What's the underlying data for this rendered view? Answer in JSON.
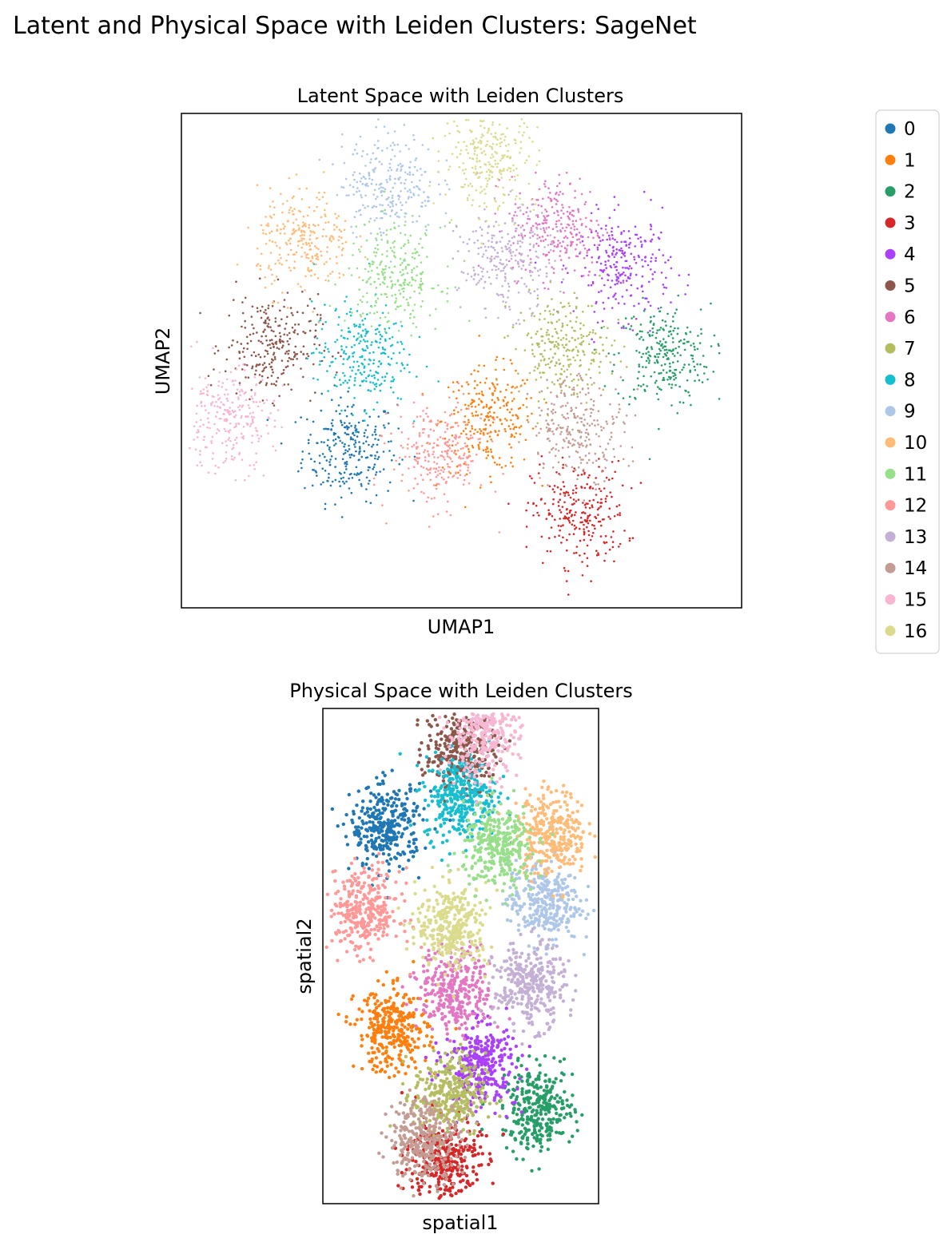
{
  "figure": {
    "title": "Latent and Physical Space with Leiden Clusters: SageNet"
  },
  "legend": {
    "placement": "right",
    "entries": [
      {
        "label": "0",
        "color": "#1f77b4"
      },
      {
        "label": "1",
        "color": "#ff7f0e"
      },
      {
        "label": "2",
        "color": "#279e68"
      },
      {
        "label": "3",
        "color": "#d62728"
      },
      {
        "label": "4",
        "color": "#aa40fc"
      },
      {
        "label": "5",
        "color": "#8c564b"
      },
      {
        "label": "6",
        "color": "#e377c2"
      },
      {
        "label": "7",
        "color": "#b5bd61"
      },
      {
        "label": "8",
        "color": "#17becf"
      },
      {
        "label": "9",
        "color": "#aec7e8"
      },
      {
        "label": "10",
        "color": "#ffbb78"
      },
      {
        "label": "11",
        "color": "#98df8a"
      },
      {
        "label": "12",
        "color": "#ff9896"
      },
      {
        "label": "13",
        "color": "#c5b0d5"
      },
      {
        "label": "14",
        "color": "#c49c94"
      },
      {
        "label": "15",
        "color": "#f7b6d2"
      },
      {
        "label": "16",
        "color": "#dbdb8d"
      }
    ]
  },
  "chart_data": [
    {
      "type": "scatter",
      "title": "Latent Space with Leiden Clusters",
      "xlabel": "UMAP1",
      "ylabel": "UMAP2",
      "xlim": [
        0,
        100
      ],
      "ylim": [
        0,
        100
      ],
      "grid": false,
      "ticks": false,
      "clusters": [
        {
          "label": "0",
          "x": 30,
          "y": 32
        },
        {
          "label": "1",
          "x": 55,
          "y": 38
        },
        {
          "label": "2",
          "x": 86,
          "y": 51
        },
        {
          "label": "3",
          "x": 71,
          "y": 19
        },
        {
          "label": "4",
          "x": 79,
          "y": 69
        },
        {
          "label": "5",
          "x": 16,
          "y": 53
        },
        {
          "label": "6",
          "x": 67,
          "y": 77
        },
        {
          "label": "7",
          "x": 68,
          "y": 53
        },
        {
          "label": "8",
          "x": 32,
          "y": 51
        },
        {
          "label": "9",
          "x": 37,
          "y": 86
        },
        {
          "label": "10",
          "x": 22,
          "y": 74
        },
        {
          "label": "11",
          "x": 38,
          "y": 67
        },
        {
          "label": "12",
          "x": 46,
          "y": 31
        },
        {
          "label": "13",
          "x": 58,
          "y": 70
        },
        {
          "label": "14",
          "x": 71,
          "y": 37
        },
        {
          "label": "15",
          "x": 8,
          "y": 38
        },
        {
          "label": "16",
          "x": 55,
          "y": 91
        }
      ]
    },
    {
      "type": "scatter",
      "title": "Physical Space with Leiden Clusters",
      "xlabel": "spatial1",
      "ylabel": "spatial2",
      "xlim": [
        0,
        100
      ],
      "ylim": [
        0,
        100
      ],
      "grid": false,
      "ticks": false,
      "clusters": [
        {
          "label": "0",
          "x": 23,
          "y": 76
        },
        {
          "label": "1",
          "x": 25,
          "y": 35
        },
        {
          "label": "2",
          "x": 78,
          "y": 19
        },
        {
          "label": "3",
          "x": 44,
          "y": 9
        },
        {
          "label": "4",
          "x": 57,
          "y": 28
        },
        {
          "label": "5",
          "x": 50,
          "y": 92
        },
        {
          "label": "6",
          "x": 48,
          "y": 43
        },
        {
          "label": "7",
          "x": 46,
          "y": 22
        },
        {
          "label": "8",
          "x": 50,
          "y": 82
        },
        {
          "label": "9",
          "x": 80,
          "y": 61
        },
        {
          "label": "10",
          "x": 83,
          "y": 75
        },
        {
          "label": "11",
          "x": 64,
          "y": 72
        },
        {
          "label": "12",
          "x": 15,
          "y": 59
        },
        {
          "label": "13",
          "x": 75,
          "y": 44
        },
        {
          "label": "14",
          "x": 37,
          "y": 13
        },
        {
          "label": "15",
          "x": 58,
          "y": 95
        },
        {
          "label": "16",
          "x": 47,
          "y": 56
        }
      ]
    }
  ]
}
